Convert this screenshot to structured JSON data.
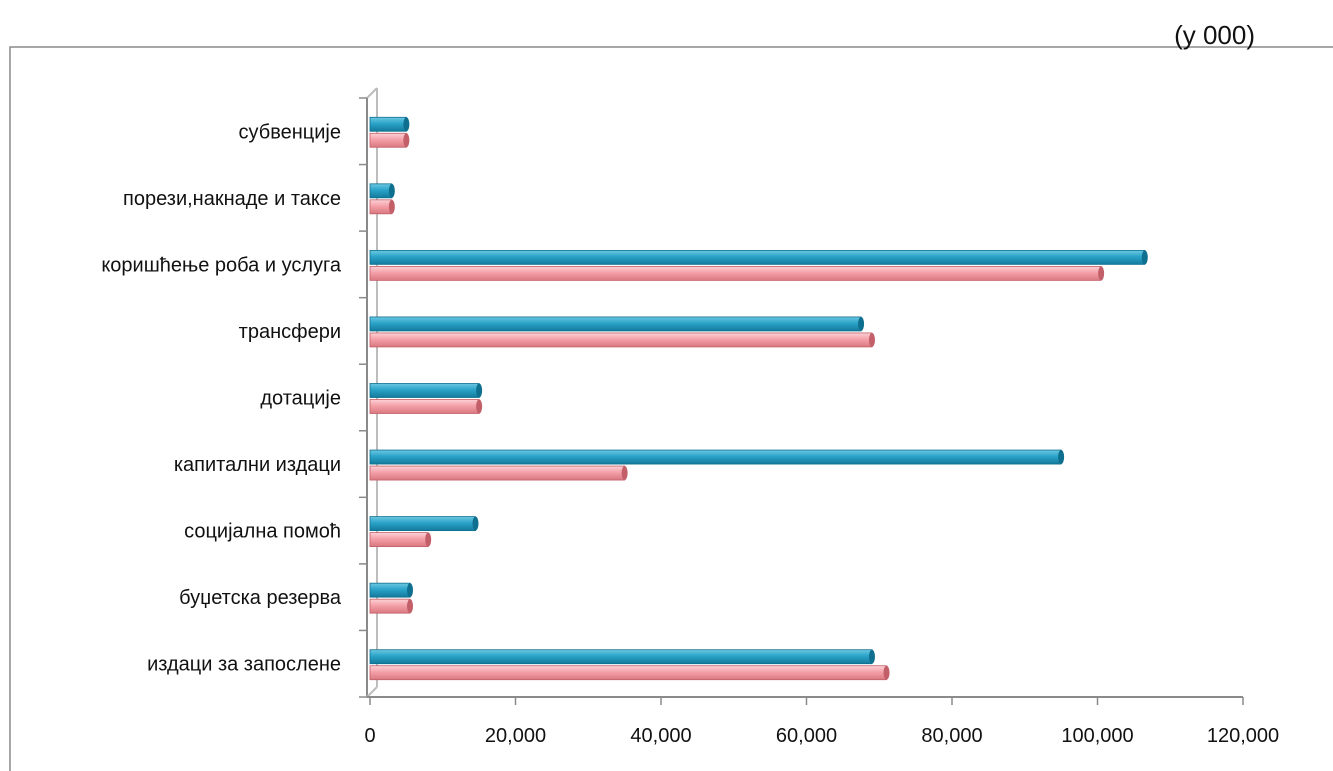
{
  "chart_data": {
    "type": "bar",
    "orientation": "horizontal",
    "unit_note": "(у 000)",
    "categories": [
      "издаци за запослене",
      "буџетска резерва",
      "социјална помоћ",
      "капитални издаци",
      "дотације",
      "трансфери",
      "коришћење роба и услуга",
      "порези,накнаде и таксе",
      "субвенције"
    ],
    "series": [
      {
        "color": "#f4a0a8",
        "values": [
          71000,
          5500,
          8000,
          35000,
          15000,
          69000,
          100500,
          3000,
          5000
        ]
      },
      {
        "color": "#2aa3c8",
        "values": [
          69000,
          5500,
          14500,
          95000,
          15000,
          67500,
          106500,
          3000,
          5000
        ]
      }
    ],
    "xlim": [
      0,
      120000
    ],
    "xticks": [
      0,
      20000,
      40000,
      60000,
      80000,
      100000,
      120000
    ],
    "xtick_labels": [
      "0",
      "20,000",
      "40,000",
      "60,000",
      "80,000",
      "100,000",
      "120,000"
    ],
    "grid": false,
    "legend": "none"
  }
}
